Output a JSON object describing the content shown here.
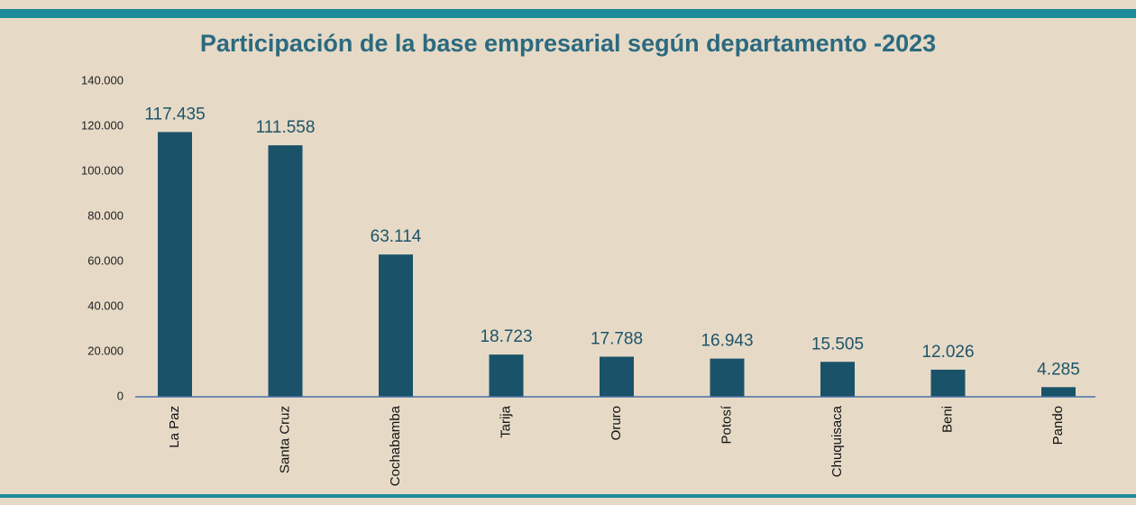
{
  "chart_data": {
    "type": "bar",
    "title": "Participación de la base empresarial según departamento -2023",
    "categories": [
      "La Paz",
      "Santa Cruz",
      "Cochabamba",
      "Tarija",
      "Oruro",
      "Potosí",
      "Chuquisaca",
      "Beni",
      "Pando"
    ],
    "values": [
      117435,
      111558,
      63114,
      18723,
      17788,
      16943,
      15505,
      12026,
      4285
    ],
    "value_labels": [
      "117.435",
      "111.558",
      "63.114",
      "18.723",
      "17.788",
      "16.943",
      "15.505",
      "12.026",
      "4.285"
    ],
    "color": "#1a5369",
    "ylim": [
      0,
      140000
    ],
    "yticks": [
      0,
      {
        "value": 20000,
        "label": "20.000"
      },
      {
        "value": 40000,
        "label": "40.000"
      },
      {
        "value": 60000,
        "label": "60.000"
      },
      {
        "value": 80000,
        "label": "80.000"
      },
      {
        "value": 100000,
        "label": "100.000"
      },
      {
        "value": 120000,
        "label": "120.000"
      },
      {
        "value": 140000,
        "label": "140.000"
      }
    ],
    "grid": false
  }
}
